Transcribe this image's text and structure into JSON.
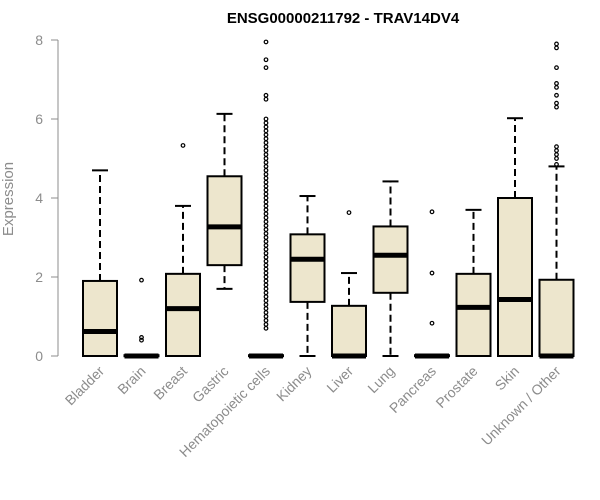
{
  "chart_data": {
    "type": "box",
    "title": "ENSG00000211792 - TRAV14DV4",
    "xlabel": "",
    "ylabel": "Expression",
    "ylim": [
      0,
      8
    ],
    "yticks": [
      0,
      2,
      4,
      6,
      8
    ],
    "box_fill": "#ede6cd",
    "line_color": "#000000",
    "axis_color": "#8c8c8c",
    "categories": [
      "Bladder",
      "Brain",
      "Breast",
      "Gastric",
      "Hematopoietic cells",
      "Kidney",
      "Liver",
      "Lung",
      "Pancreas",
      "Prostate",
      "Skin",
      "Unknown / Other"
    ],
    "boxes": [
      {
        "name": "Bladder",
        "whisker_low": 0,
        "q1": 0,
        "median": 0.62,
        "q3": 1.9,
        "whisker_high": 4.7,
        "outliers": []
      },
      {
        "name": "Brain",
        "whisker_low": 0,
        "q1": 0,
        "median": 0,
        "q3": 0.02,
        "whisker_high": 0.05,
        "outliers": [
          0.4,
          0.47,
          1.92
        ]
      },
      {
        "name": "Breast",
        "whisker_low": 0,
        "q1": 0,
        "median": 1.2,
        "q3": 2.08,
        "whisker_high": 3.8,
        "outliers": [
          5.33
        ]
      },
      {
        "name": "Gastric",
        "whisker_low": 1.7,
        "q1": 2.3,
        "median": 3.27,
        "q3": 4.55,
        "whisker_high": 6.13,
        "outliers": []
      },
      {
        "name": "Hematopoietic cells",
        "whisker_low": 0,
        "q1": 0,
        "median": 0,
        "q3": 0.02,
        "whisker_high": 0.05,
        "outliers": [
          0.7,
          0.8,
          0.9,
          1.0,
          1.1,
          1.2,
          1.3,
          1.4,
          1.5,
          1.6,
          1.7,
          1.8,
          1.9,
          2.0,
          2.1,
          2.2,
          2.3,
          2.4,
          2.5,
          2.6,
          2.7,
          2.8,
          2.9,
          3.0,
          3.1,
          3.2,
          3.3,
          3.4,
          3.5,
          3.6,
          3.7,
          3.8,
          3.9,
          4.0,
          4.1,
          4.2,
          4.3,
          4.4,
          4.5,
          4.6,
          4.7,
          4.8,
          4.9,
          5.0,
          5.1,
          5.2,
          5.3,
          5.4,
          5.5,
          5.6,
          5.7,
          5.8,
          5.9,
          6.0,
          6.5,
          6.6,
          7.3,
          7.5,
          7.95
        ]
      },
      {
        "name": "Kidney",
        "whisker_low": 0,
        "q1": 1.37,
        "median": 2.45,
        "q3": 3.08,
        "whisker_high": 4.05,
        "outliers": []
      },
      {
        "name": "Liver",
        "whisker_low": 0,
        "q1": 0,
        "median": 0,
        "q3": 1.27,
        "whisker_high": 2.1,
        "outliers": [
          3.63
        ]
      },
      {
        "name": "Lung",
        "whisker_low": 0,
        "q1": 1.6,
        "median": 2.55,
        "q3": 3.28,
        "whisker_high": 4.42,
        "outliers": []
      },
      {
        "name": "Pancreas",
        "whisker_low": 0,
        "q1": 0,
        "median": 0,
        "q3": 0.02,
        "whisker_high": 0.05,
        "outliers": [
          0.83,
          2.1,
          3.65
        ]
      },
      {
        "name": "Prostate",
        "whisker_low": 0,
        "q1": 0,
        "median": 1.23,
        "q3": 2.08,
        "whisker_high": 3.7,
        "outliers": []
      },
      {
        "name": "Skin",
        "whisker_low": 0,
        "q1": 0,
        "median": 1.43,
        "q3": 4.0,
        "whisker_high": 6.02,
        "outliers": []
      },
      {
        "name": "Unknown / Other",
        "whisker_low": 0,
        "q1": 0,
        "median": 0,
        "q3": 1.93,
        "whisker_high": 4.8,
        "outliers": [
          4.85,
          5.0,
          5.1,
          5.2,
          5.3,
          6.3,
          6.4,
          6.6,
          6.8,
          6.9,
          7.3,
          7.8,
          7.9
        ]
      }
    ]
  }
}
